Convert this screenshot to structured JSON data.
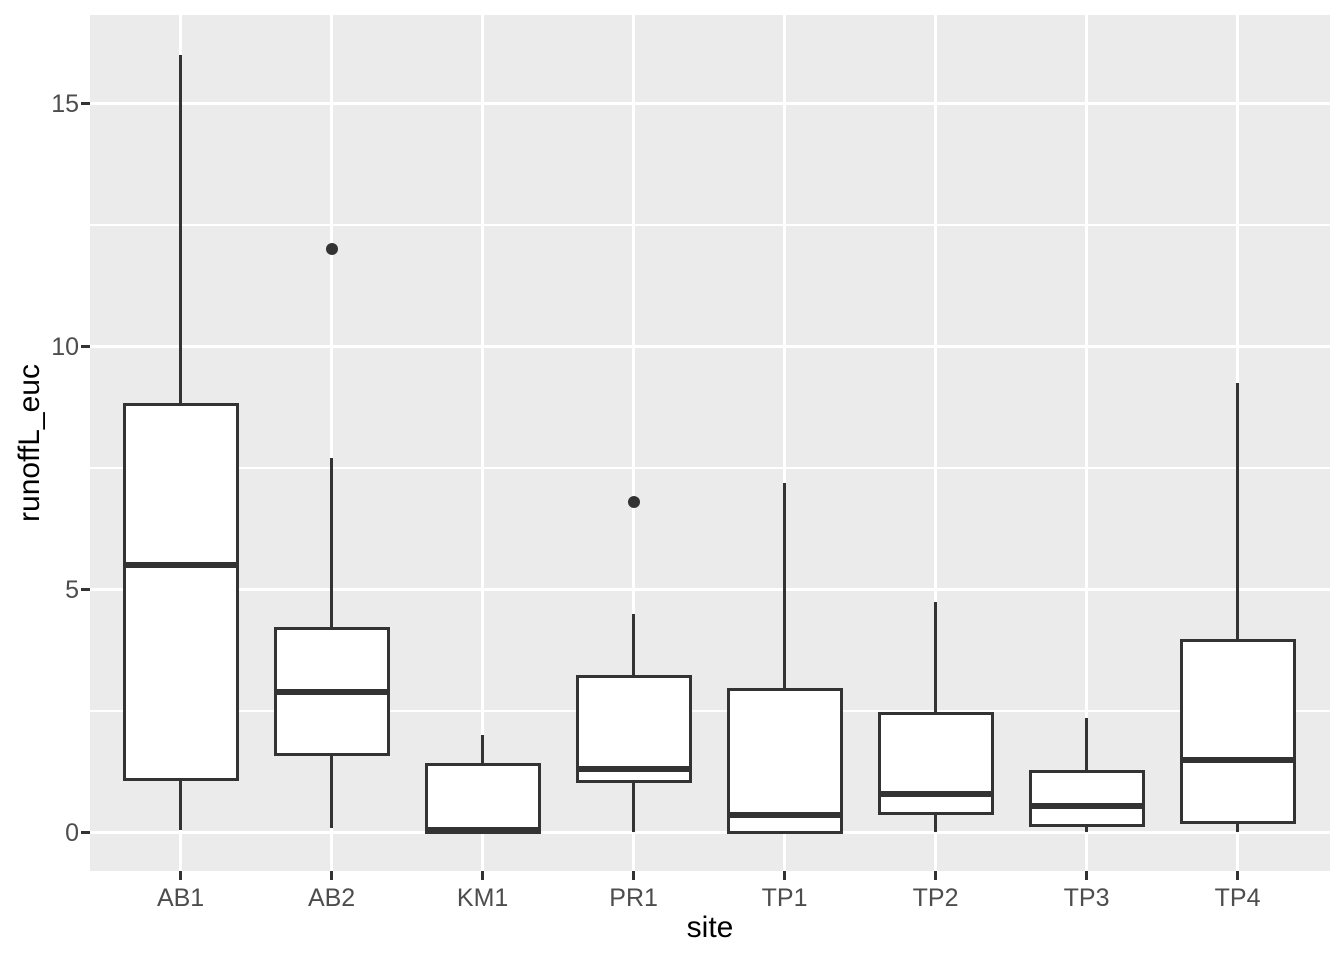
{
  "chart_data": {
    "type": "boxplot",
    "title": "",
    "xlabel": "site",
    "ylabel": "runoffL_euc",
    "categories": [
      "AB1",
      "AB2",
      "KM1",
      "PR1",
      "TP1",
      "TP2",
      "TP3",
      "TP4"
    ],
    "series": [
      {
        "name": "AB1",
        "min": 0.05,
        "q1": 1.1,
        "median": 5.5,
        "q3": 8.8,
        "max": 16.0,
        "outliers": []
      },
      {
        "name": "AB2",
        "min": 0.1,
        "q1": 1.6,
        "median": 2.9,
        "q3": 4.2,
        "max": 7.7,
        "outliers": [
          12.0
        ]
      },
      {
        "name": "KM1",
        "min": 0.0,
        "q1": 0.0,
        "median": 0.05,
        "q3": 1.4,
        "max": 2.0,
        "outliers": []
      },
      {
        "name": "PR1",
        "min": 0.0,
        "q1": 1.05,
        "median": 1.3,
        "q3": 3.2,
        "max": 4.5,
        "outliers": [
          6.8
        ]
      },
      {
        "name": "TP1",
        "min": 0.0,
        "q1": 0.0,
        "median": 0.35,
        "q3": 2.95,
        "max": 7.2,
        "outliers": []
      },
      {
        "name": "TP2",
        "min": 0.0,
        "q1": 0.4,
        "median": 0.8,
        "q3": 2.45,
        "max": 4.75,
        "outliers": []
      },
      {
        "name": "TP3",
        "min": 0.0,
        "q1": 0.15,
        "median": 0.55,
        "q3": 1.25,
        "max": 2.35,
        "outliers": []
      },
      {
        "name": "TP4",
        "min": 0.0,
        "q1": 0.2,
        "median": 1.5,
        "q3": 3.95,
        "max": 9.25,
        "outliers": []
      }
    ],
    "y_ticks": [
      {
        "value": 0,
        "label": "0"
      },
      {
        "value": 5,
        "label": "5"
      },
      {
        "value": 10,
        "label": "10"
      },
      {
        "value": 15,
        "label": "15"
      }
    ],
    "y_minor_gridlines": [
      2.5,
      7.5,
      12.5
    ],
    "ylim": [
      -0.8,
      16.8
    ],
    "grid": "on",
    "legend": "none"
  },
  "style": {
    "panel_bg": "#EBEBEB",
    "grid_color": "#FFFFFF",
    "box_border": "#333333",
    "box_fill": "#FFFFFF",
    "outlier_color": "#333333",
    "tick_mark_color": "#333333",
    "tick_label_color": "#4D4D4D",
    "axis_title_color": "#000000"
  }
}
